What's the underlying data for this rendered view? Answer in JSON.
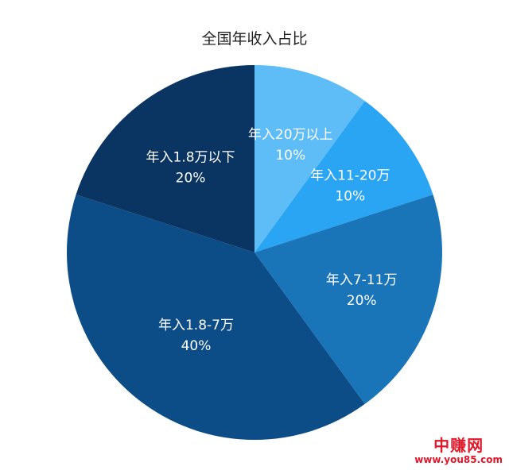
{
  "chart_data": {
    "type": "pie",
    "title": "全国年收入占比",
    "slices": [
      {
        "label": "年入20万以上",
        "value": 10,
        "value_label": "10%",
        "color": "#5ebcf6"
      },
      {
        "label": "年入11-20万",
        "value": 10,
        "value_label": "10%",
        "color": "#2aa5f3"
      },
      {
        "label": "年入7-11万",
        "value": 20,
        "value_label": "20%",
        "color": "#1a75b8"
      },
      {
        "label": "年入1.8-7万",
        "value": 40,
        "value_label": "40%",
        "color": "#0d4d87"
      },
      {
        "label": "年入1.8万以下",
        "value": 20,
        "value_label": "20%",
        "color": "#0a3461"
      }
    ],
    "start": "12 o'clock",
    "direction": "clockwise"
  },
  "watermark": {
    "text": "中赚网",
    "url": "www.you85.com"
  }
}
